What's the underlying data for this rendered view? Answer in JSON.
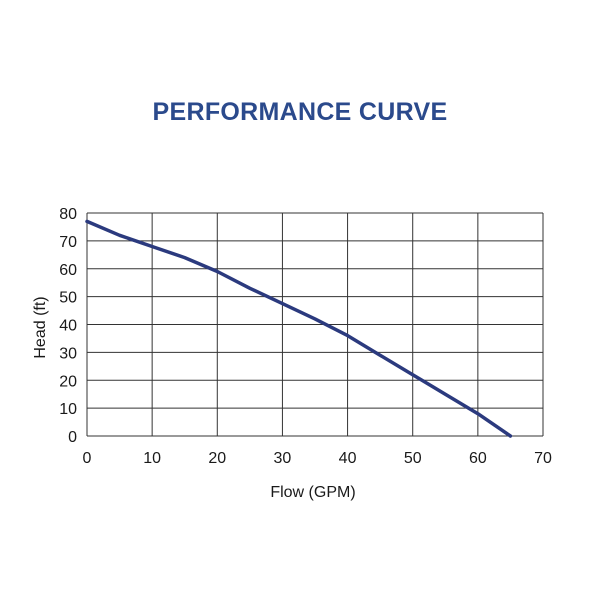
{
  "chart_data": {
    "type": "line",
    "title": "PERFORMANCE CURVE",
    "xlabel": "Flow (GPM)",
    "ylabel": "Head (ft)",
    "xlim": [
      0,
      70
    ],
    "ylim": [
      0,
      80
    ],
    "xticks": [
      0,
      10,
      20,
      30,
      40,
      50,
      60,
      70
    ],
    "yticks": [
      0,
      10,
      20,
      30,
      40,
      50,
      60,
      70,
      80
    ],
    "grid": true,
    "series": [
      {
        "x": [
          0,
          5,
          10,
          15,
          20,
          25,
          30,
          35,
          40,
          45,
          50,
          55,
          60,
          65
        ],
        "y": [
          77,
          72,
          68,
          64,
          59,
          53,
          47.5,
          42,
          36,
          29,
          22,
          15,
          8,
          0
        ]
      }
    ]
  },
  "colors": {
    "title": "#2b4a8c",
    "line": "#2b3a7e",
    "grid": "#333333"
  }
}
